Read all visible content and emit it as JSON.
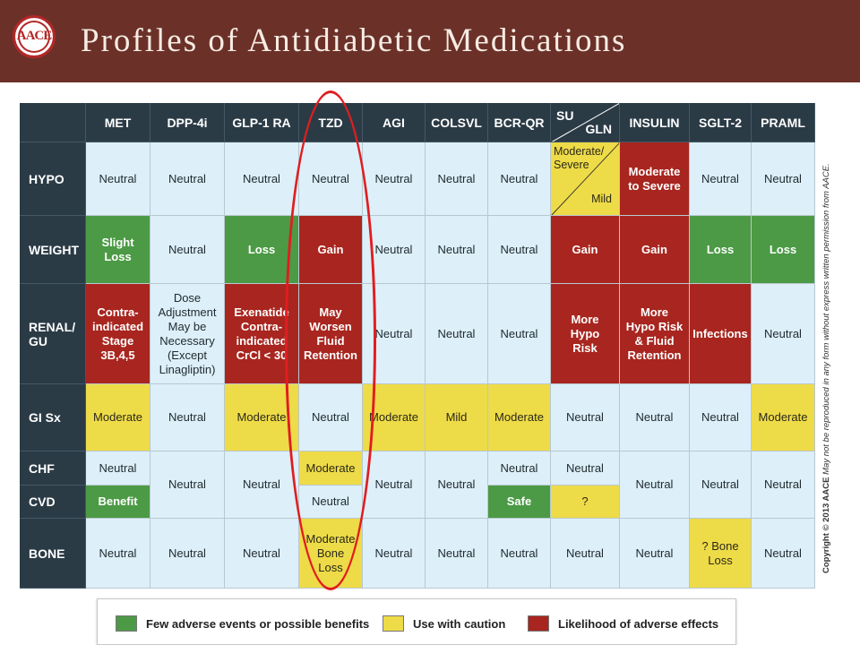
{
  "header": {
    "logo_text": "AACE",
    "title": "Profiles of Antidiabetic Medications"
  },
  "table": {
    "columns": [
      "MET",
      "DPP-4i",
      "GLP-1 RA",
      "TZD",
      "AGI",
      "COLSVL",
      "BCR-QR",
      "SU",
      "GLN",
      "INSULIN",
      "SGLT-2",
      "PRAML"
    ],
    "rows": {
      "hypo": {
        "label": "HYPO",
        "cells": [
          "Neutral",
          "Neutral",
          "Neutral",
          "Neutral",
          "Neutral",
          "Neutral",
          "Neutral",
          "Moderate/ Severe",
          "Mild",
          "Moderate to Severe",
          "Neutral",
          "Neutral"
        ]
      },
      "weight": {
        "label": "WEIGHT",
        "cells": [
          "Slight Loss",
          "Neutral",
          "Loss",
          "Gain",
          "Neutral",
          "Neutral",
          "Neutral",
          "Gain",
          "Gain",
          "Loss",
          "Loss"
        ]
      },
      "renal": {
        "label": "RENAL/ GU",
        "cells": [
          "Contra- indicated Stage 3B,4,5",
          "Dose Adjustment May be Necessary (Except Linagliptin)",
          "Exenatide Contra- indicated CrCl < 30",
          "May Worsen Fluid Retention",
          "Neutral",
          "Neutral",
          "Neutral",
          "More Hypo Risk",
          "More Hypo Risk & Fluid Retention",
          "Infections",
          "Neutral"
        ]
      },
      "gi": {
        "label": "GI Sx",
        "cells": [
          "Moderate",
          "Neutral",
          "Moderate",
          "Neutral",
          "Moderate",
          "Mild",
          "Moderate",
          "Neutral",
          "Neutral",
          "Neutral",
          "Moderate"
        ]
      },
      "chf": {
        "label": "CHF",
        "cells": [
          "Neutral",
          "Neutral",
          "Neutral",
          "Moderate",
          "Neutral",
          "Neutral",
          "Neutral",
          "Neutral",
          "Neutral",
          "Neutral",
          "Neutral"
        ]
      },
      "cvd": {
        "label": "CVD",
        "cells": [
          "Benefit",
          "Neutral",
          "Safe",
          "?"
        ]
      },
      "bone": {
        "label": "BONE",
        "cells": [
          "Neutral",
          "Neutral",
          "Neutral",
          "Moderate Bone Loss",
          "Neutral",
          "Neutral",
          "Neutral",
          "Neutral",
          "Neutral",
          "? Bone Loss",
          "Neutral"
        ]
      }
    }
  },
  "copyright": {
    "bold": "Copyright © 2013 AACE",
    "rest": "May not be reproduced in any form without express written permission from AACE."
  },
  "legend": {
    "items": [
      {
        "label": "Few adverse events or possible benefits",
        "color": "#4c9a45"
      },
      {
        "label": "Use with caution",
        "color": "#eedb48"
      },
      {
        "label": "Likelihood of adverse effects",
        "color": "#a8261f"
      }
    ]
  },
  "colors": {
    "banner": "#6b3129",
    "neutral": "#ddeff8",
    "green": "#4c9a45",
    "yellow": "#eedb48",
    "red": "#a8261f",
    "annotation_circle": "#e01d20"
  }
}
